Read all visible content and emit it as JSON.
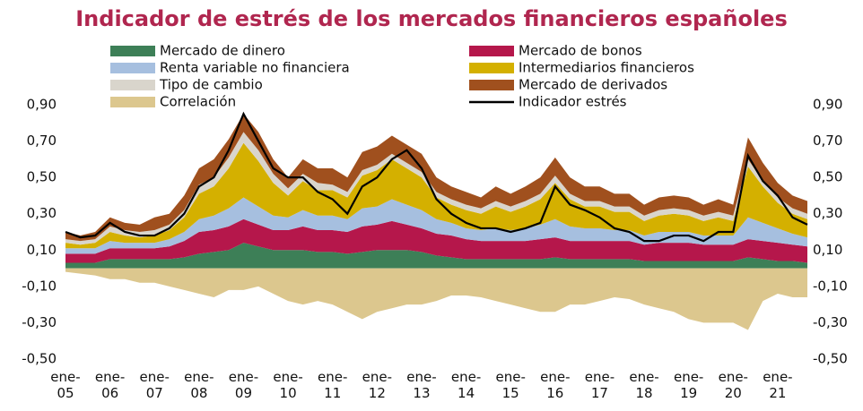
{
  "chart_data": {
    "type": "stacked_area",
    "title": "Indicador de estrés de los mercados financieros españoles",
    "categories": [
      "ene-05",
      null,
      null,
      "ene-06",
      null,
      null,
      "ene-07",
      null,
      null,
      "ene-08",
      null,
      null,
      "ene-09",
      null,
      null,
      "ene-10",
      null,
      null,
      "ene-11",
      null,
      null,
      "ene-12",
      null,
      null,
      "ene-13",
      null,
      null,
      "ene-14",
      null,
      null,
      "ene-15",
      null,
      null,
      "ene-16",
      null,
      null,
      "ene-17",
      null,
      null,
      "ene-18",
      null,
      null,
      "ene-19",
      null,
      null,
      "ene-20",
      null,
      null,
      "ene-21",
      null,
      null
    ],
    "ylim": [
      -0.5,
      0.9
    ],
    "yticks": [
      {
        "value": -0.5,
        "label": "-0,50"
      },
      {
        "value": -0.3,
        "label": "-0,30"
      },
      {
        "value": -0.1,
        "label": "-0,10"
      },
      {
        "value": 0.1,
        "label": "0,10"
      },
      {
        "value": 0.3,
        "label": "0,30"
      },
      {
        "value": 0.5,
        "label": "0,50"
      },
      {
        "value": 0.7,
        "label": "0,70"
      },
      {
        "value": 0.9,
        "label": "0,90"
      }
    ],
    "grid": false,
    "series": [
      {
        "name": "Mercado de dinero",
        "color": "#3d7f57",
        "values": [
          0.03,
          0.03,
          0.03,
          0.05,
          0.05,
          0.05,
          0.05,
          0.05,
          0.06,
          0.08,
          0.09,
          0.1,
          0.14,
          0.12,
          0.1,
          0.1,
          0.1,
          0.09,
          0.09,
          0.08,
          0.09,
          0.1,
          0.1,
          0.1,
          0.09,
          0.07,
          0.06,
          0.05,
          0.05,
          0.05,
          0.05,
          0.05,
          0.05,
          0.06,
          0.05,
          0.05,
          0.05,
          0.05,
          0.05,
          0.04,
          0.04,
          0.04,
          0.04,
          0.04,
          0.04,
          0.04,
          0.06,
          0.05,
          0.04,
          0.04,
          0.03
        ]
      },
      {
        "name": "Mercado de bonos",
        "color": "#b5174b",
        "values": [
          0.05,
          0.05,
          0.05,
          0.06,
          0.06,
          0.06,
          0.06,
          0.07,
          0.09,
          0.12,
          0.12,
          0.13,
          0.13,
          0.12,
          0.11,
          0.11,
          0.13,
          0.12,
          0.12,
          0.12,
          0.14,
          0.14,
          0.16,
          0.14,
          0.13,
          0.12,
          0.12,
          0.11,
          0.1,
          0.1,
          0.1,
          0.1,
          0.11,
          0.11,
          0.1,
          0.1,
          0.1,
          0.1,
          0.1,
          0.09,
          0.1,
          0.1,
          0.1,
          0.09,
          0.09,
          0.09,
          0.1,
          0.1,
          0.1,
          0.09,
          0.09
        ]
      },
      {
        "name": "Renta variable no financiera",
        "color": "#a6bfdf",
        "values": [
          0.03,
          0.03,
          0.03,
          0.04,
          0.03,
          0.03,
          0.03,
          0.04,
          0.05,
          0.07,
          0.08,
          0.1,
          0.12,
          0.1,
          0.08,
          0.07,
          0.09,
          0.08,
          0.08,
          0.07,
          0.1,
          0.1,
          0.12,
          0.11,
          0.1,
          0.08,
          0.07,
          0.06,
          0.06,
          0.07,
          0.06,
          0.07,
          0.08,
          0.1,
          0.08,
          0.07,
          0.07,
          0.06,
          0.06,
          0.05,
          0.06,
          0.06,
          0.06,
          0.05,
          0.05,
          0.05,
          0.12,
          0.1,
          0.08,
          0.06,
          0.05
        ]
      },
      {
        "name": "Intermediarios financieros",
        "color": "#d4b000",
        "values": [
          0.03,
          0.02,
          0.03,
          0.05,
          0.04,
          0.03,
          0.04,
          0.05,
          0.08,
          0.14,
          0.16,
          0.22,
          0.3,
          0.25,
          0.18,
          0.12,
          0.16,
          0.14,
          0.14,
          0.12,
          0.18,
          0.2,
          0.22,
          0.2,
          0.18,
          0.12,
          0.1,
          0.1,
          0.09,
          0.12,
          0.1,
          0.12,
          0.14,
          0.2,
          0.15,
          0.12,
          0.12,
          0.1,
          0.1,
          0.08,
          0.09,
          0.1,
          0.09,
          0.08,
          0.1,
          0.08,
          0.28,
          0.2,
          0.14,
          0.11,
          0.1
        ]
      },
      {
        "name": "Tipo de cambio",
        "color": "#d9d5cc",
        "values": [
          0.02,
          0.02,
          0.02,
          0.03,
          0.03,
          0.03,
          0.03,
          0.03,
          0.04,
          0.05,
          0.05,
          0.06,
          0.06,
          0.06,
          0.05,
          0.04,
          0.04,
          0.04,
          0.03,
          0.03,
          0.03,
          0.03,
          0.03,
          0.03,
          0.03,
          0.03,
          0.03,
          0.03,
          0.03,
          0.03,
          0.03,
          0.03,
          0.03,
          0.04,
          0.03,
          0.03,
          0.03,
          0.03,
          0.03,
          0.03,
          0.03,
          0.03,
          0.03,
          0.03,
          0.03,
          0.03,
          0.04,
          0.03,
          0.03,
          0.03,
          0.03
        ]
      },
      {
        "name": "Mercado de derivados",
        "color": "#a0501e",
        "values": [
          0.04,
          0.03,
          0.04,
          0.05,
          0.04,
          0.04,
          0.07,
          0.06,
          0.08,
          0.09,
          0.1,
          0.1,
          0.1,
          0.1,
          0.08,
          0.06,
          0.08,
          0.08,
          0.09,
          0.08,
          0.1,
          0.1,
          0.1,
          0.1,
          0.1,
          0.08,
          0.07,
          0.07,
          0.06,
          0.08,
          0.07,
          0.08,
          0.09,
          0.1,
          0.09,
          0.08,
          0.08,
          0.07,
          0.07,
          0.06,
          0.07,
          0.07,
          0.07,
          0.06,
          0.07,
          0.06,
          0.12,
          0.1,
          0.08,
          0.07,
          0.07
        ]
      },
      {
        "name": "Correlación",
        "color": "#dcc78e",
        "values": [
          -0.02,
          -0.03,
          -0.04,
          -0.06,
          -0.06,
          -0.08,
          -0.08,
          -0.1,
          -0.12,
          -0.14,
          -0.16,
          -0.12,
          -0.12,
          -0.1,
          -0.14,
          -0.18,
          -0.2,
          -0.18,
          -0.2,
          -0.24,
          -0.28,
          -0.24,
          -0.22,
          -0.2,
          -0.2,
          -0.18,
          -0.15,
          -0.15,
          -0.16,
          -0.18,
          -0.2,
          -0.22,
          -0.24,
          -0.24,
          -0.2,
          -0.2,
          -0.18,
          -0.16,
          -0.17,
          -0.2,
          -0.22,
          -0.24,
          -0.28,
          -0.3,
          -0.3,
          -0.3,
          -0.34,
          -0.18,
          -0.14,
          -0.16,
          -0.16
        ]
      },
      {
        "name": "Indicador estrés",
        "color": "#000000",
        "type": "line",
        "values": [
          0.2,
          0.17,
          0.18,
          0.25,
          0.2,
          0.18,
          0.18,
          0.22,
          0.3,
          0.45,
          0.5,
          0.65,
          0.85,
          0.7,
          0.55,
          0.5,
          0.5,
          0.42,
          0.38,
          0.3,
          0.45,
          0.5,
          0.6,
          0.65,
          0.55,
          0.38,
          0.3,
          0.25,
          0.22,
          0.22,
          0.2,
          0.22,
          0.25,
          0.45,
          0.35,
          0.32,
          0.28,
          0.22,
          0.2,
          0.15,
          0.15,
          0.18,
          0.18,
          0.15,
          0.2,
          0.2,
          0.62,
          0.48,
          0.4,
          0.28,
          0.24
        ]
      }
    ]
  }
}
